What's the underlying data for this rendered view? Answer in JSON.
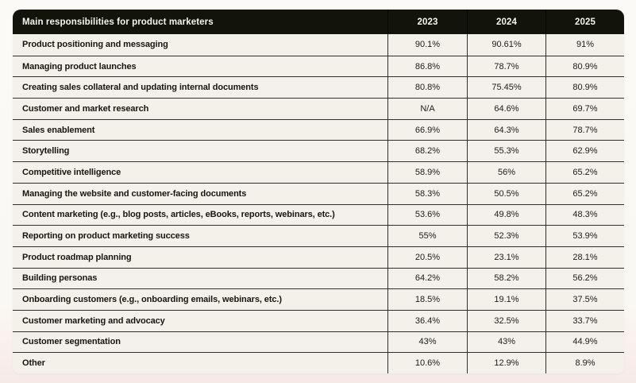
{
  "table": {
    "header": {
      "label": "Main responsibilities for product marketers",
      "years": [
        "2023",
        "2024",
        "2025"
      ]
    },
    "rows": [
      {
        "label": "Product positioning and messaging",
        "values": [
          "90.1%",
          "90.61%",
          "91%"
        ]
      },
      {
        "label": "Managing product launches",
        "values": [
          "86.8%",
          "78.7%",
          "80.9%"
        ]
      },
      {
        "label": "Creating sales collateral and updating internal documents",
        "values": [
          "80.8%",
          "75.45%",
          "80.9%"
        ]
      },
      {
        "label": "Customer and market research",
        "values": [
          "N/A",
          "64.6%",
          "69.7%"
        ]
      },
      {
        "label": "Sales enablement",
        "values": [
          "66.9%",
          "64.3%",
          "78.7%"
        ]
      },
      {
        "label": "Storytelling",
        "values": [
          "68.2%",
          "55.3%",
          "62.9%"
        ]
      },
      {
        "label": "Competitive intelligence",
        "values": [
          "58.9%",
          "56%",
          "65.2%"
        ]
      },
      {
        "label": "Managing the website and customer-facing documents",
        "values": [
          "58.3%",
          "50.5%",
          "65.2%"
        ]
      },
      {
        "label": "Content marketing (e.g., blog posts, articles, eBooks, reports, webinars, etc.)",
        "values": [
          "53.6%",
          "49.8%",
          "48.3%"
        ]
      },
      {
        "label": "Reporting on product marketing success",
        "values": [
          "55%",
          "52.3%",
          "53.9%"
        ]
      },
      {
        "label": "Product roadmap planning",
        "values": [
          "20.5%",
          "23.1%",
          "28.1%"
        ]
      },
      {
        "label": "Building personas",
        "values": [
          "64.2%",
          "58.2%",
          "56.2%"
        ]
      },
      {
        "label": "Onboarding customers (e.g., onboarding emails, webinars, etc.)",
        "values": [
          "18.5%",
          "19.1%",
          "37.5%"
        ]
      },
      {
        "label": "Customer marketing and advocacy",
        "values": [
          "36.4%",
          "32.5%",
          "33.7%"
        ]
      },
      {
        "label": "Customer segmentation",
        "values": [
          "43%",
          "43%",
          "44.9%"
        ]
      },
      {
        "label": "Other",
        "values": [
          "10.6%",
          "12.9%",
          "8.9%"
        ]
      }
    ],
    "colors": {
      "header_bg": "#121309",
      "header_text": "#f7f5ef",
      "row_bg": "#f3f1ea",
      "border": "#2f2f2b",
      "text": "#16160f"
    }
  },
  "chart_data": {
    "type": "table",
    "title": "Main responsibilities for product marketers",
    "categories": [
      "Product positioning and messaging",
      "Managing product launches",
      "Creating sales collateral and updating internal documents",
      "Customer and market research",
      "Sales enablement",
      "Storytelling",
      "Competitive intelligence",
      "Managing the website and customer-facing documents",
      "Content marketing (e.g., blog posts, articles, eBooks, reports, webinars, etc.)",
      "Reporting on product marketing success",
      "Product roadmap planning",
      "Building personas",
      "Onboarding customers (e.g., onboarding emails, webinars, etc.)",
      "Customer marketing and advocacy",
      "Customer segmentation",
      "Other"
    ],
    "series": [
      {
        "name": "2023",
        "values": [
          90.1,
          86.8,
          80.8,
          null,
          66.9,
          68.2,
          58.9,
          58.3,
          53.6,
          55,
          20.5,
          64.2,
          18.5,
          36.4,
          43,
          10.6
        ]
      },
      {
        "name": "2024",
        "values": [
          90.61,
          78.7,
          75.45,
          64.6,
          64.3,
          55.3,
          56,
          50.5,
          49.8,
          52.3,
          23.1,
          58.2,
          19.1,
          32.5,
          43,
          12.9
        ]
      },
      {
        "name": "2025",
        "values": [
          91,
          80.9,
          80.9,
          69.7,
          78.7,
          62.9,
          65.2,
          65.2,
          48.3,
          53.9,
          28.1,
          56.2,
          37.5,
          33.7,
          44.9,
          8.9
        ]
      }
    ],
    "unit": "%"
  }
}
